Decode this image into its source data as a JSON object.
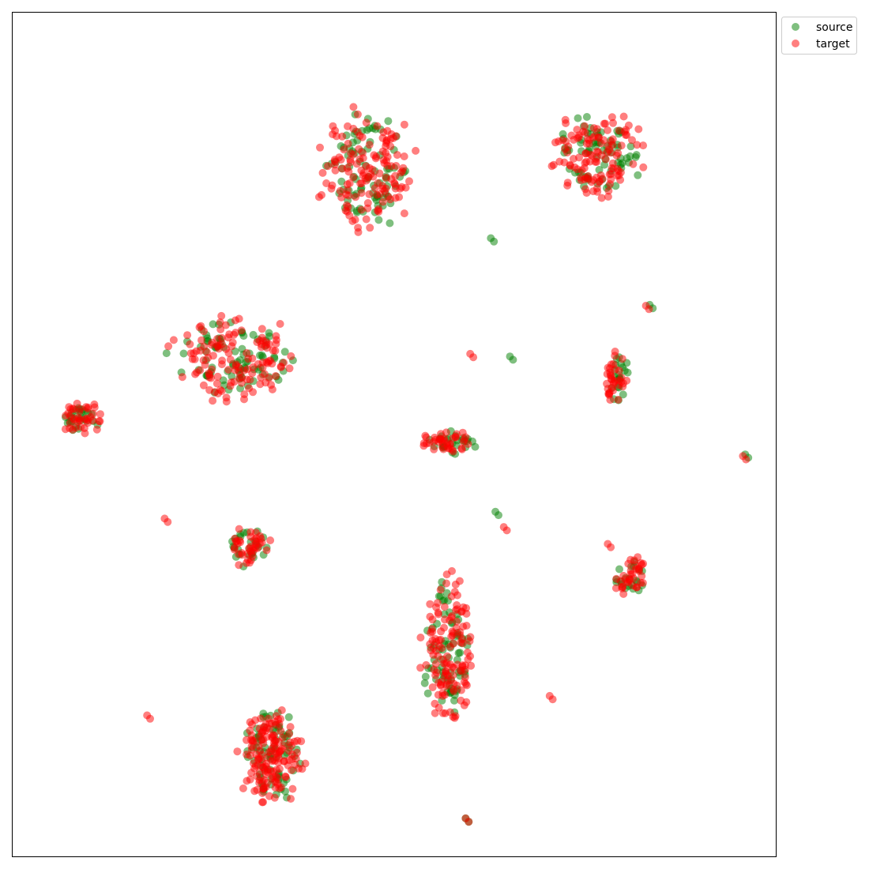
{
  "chart_data": {
    "type": "scatter",
    "title": "",
    "xlabel": "",
    "ylabel": "",
    "xlim": [
      0,
      1
    ],
    "ylim": [
      0,
      1
    ],
    "grid": false,
    "axis_ticks": false,
    "legend_placement": "outside-top-right",
    "series": [
      {
        "name": "source",
        "color": "#008000",
        "alpha": 0.5,
        "clusters": [
          {
            "cx": 0.466,
            "cy": 0.813,
            "rx": 0.07,
            "ry": 0.08,
            "n": 80
          },
          {
            "cx": 0.765,
            "cy": 0.833,
            "rx": 0.065,
            "ry": 0.055,
            "n": 70
          },
          {
            "cx": 0.29,
            "cy": 0.59,
            "rx": 0.09,
            "ry": 0.05,
            "n": 80
          },
          {
            "cx": 0.09,
            "cy": 0.52,
            "rx": 0.03,
            "ry": 0.02,
            "n": 25
          },
          {
            "cx": 0.795,
            "cy": 0.565,
            "rx": 0.015,
            "ry": 0.035,
            "n": 20
          },
          {
            "cx": 0.575,
            "cy": 0.49,
            "rx": 0.04,
            "ry": 0.015,
            "n": 25
          },
          {
            "cx": 0.31,
            "cy": 0.37,
            "rx": 0.03,
            "ry": 0.03,
            "n": 25
          },
          {
            "cx": 0.81,
            "cy": 0.33,
            "rx": 0.025,
            "ry": 0.025,
            "n": 20
          },
          {
            "cx": 0.57,
            "cy": 0.24,
            "rx": 0.035,
            "ry": 0.1,
            "n": 70
          },
          {
            "cx": 0.34,
            "cy": 0.12,
            "rx": 0.045,
            "ry": 0.06,
            "n": 70
          }
        ],
        "points": [
          {
            "x": 0.627,
            "y": 0.732
          },
          {
            "x": 0.652,
            "y": 0.592
          },
          {
            "x": 0.96,
            "y": 0.476
          },
          {
            "x": 0.633,
            "y": 0.408
          },
          {
            "x": 0.835,
            "y": 0.653
          },
          {
            "x": 0.594,
            "y": 0.045
          }
        ]
      },
      {
        "name": "target",
        "color": "#ff0000",
        "alpha": 0.5,
        "clusters": [
          {
            "cx": 0.466,
            "cy": 0.813,
            "rx": 0.075,
            "ry": 0.085,
            "n": 140
          },
          {
            "cx": 0.765,
            "cy": 0.833,
            "rx": 0.07,
            "ry": 0.06,
            "n": 120
          },
          {
            "cx": 0.29,
            "cy": 0.59,
            "rx": 0.095,
            "ry": 0.055,
            "n": 130
          },
          {
            "cx": 0.09,
            "cy": 0.52,
            "rx": 0.032,
            "ry": 0.022,
            "n": 40
          },
          {
            "cx": 0.79,
            "cy": 0.565,
            "rx": 0.018,
            "ry": 0.035,
            "n": 35
          },
          {
            "cx": 0.57,
            "cy": 0.49,
            "rx": 0.042,
            "ry": 0.016,
            "n": 40
          },
          {
            "cx": 0.31,
            "cy": 0.37,
            "rx": 0.032,
            "ry": 0.03,
            "n": 40
          },
          {
            "cx": 0.815,
            "cy": 0.33,
            "rx": 0.03,
            "ry": 0.028,
            "n": 35
          },
          {
            "cx": 0.57,
            "cy": 0.24,
            "rx": 0.038,
            "ry": 0.105,
            "n": 130
          },
          {
            "cx": 0.34,
            "cy": 0.12,
            "rx": 0.05,
            "ry": 0.065,
            "n": 150
          }
        ],
        "points": [
          {
            "x": 0.6,
            "y": 0.595
          },
          {
            "x": 0.2,
            "y": 0.4
          },
          {
            "x": 0.78,
            "y": 0.37
          },
          {
            "x": 0.704,
            "y": 0.19
          },
          {
            "x": 0.177,
            "y": 0.167
          },
          {
            "x": 0.594,
            "y": 0.045
          },
          {
            "x": 0.83,
            "y": 0.652
          },
          {
            "x": 0.957,
            "y": 0.474
          },
          {
            "x": 0.644,
            "y": 0.39
          }
        ]
      }
    ]
  }
}
